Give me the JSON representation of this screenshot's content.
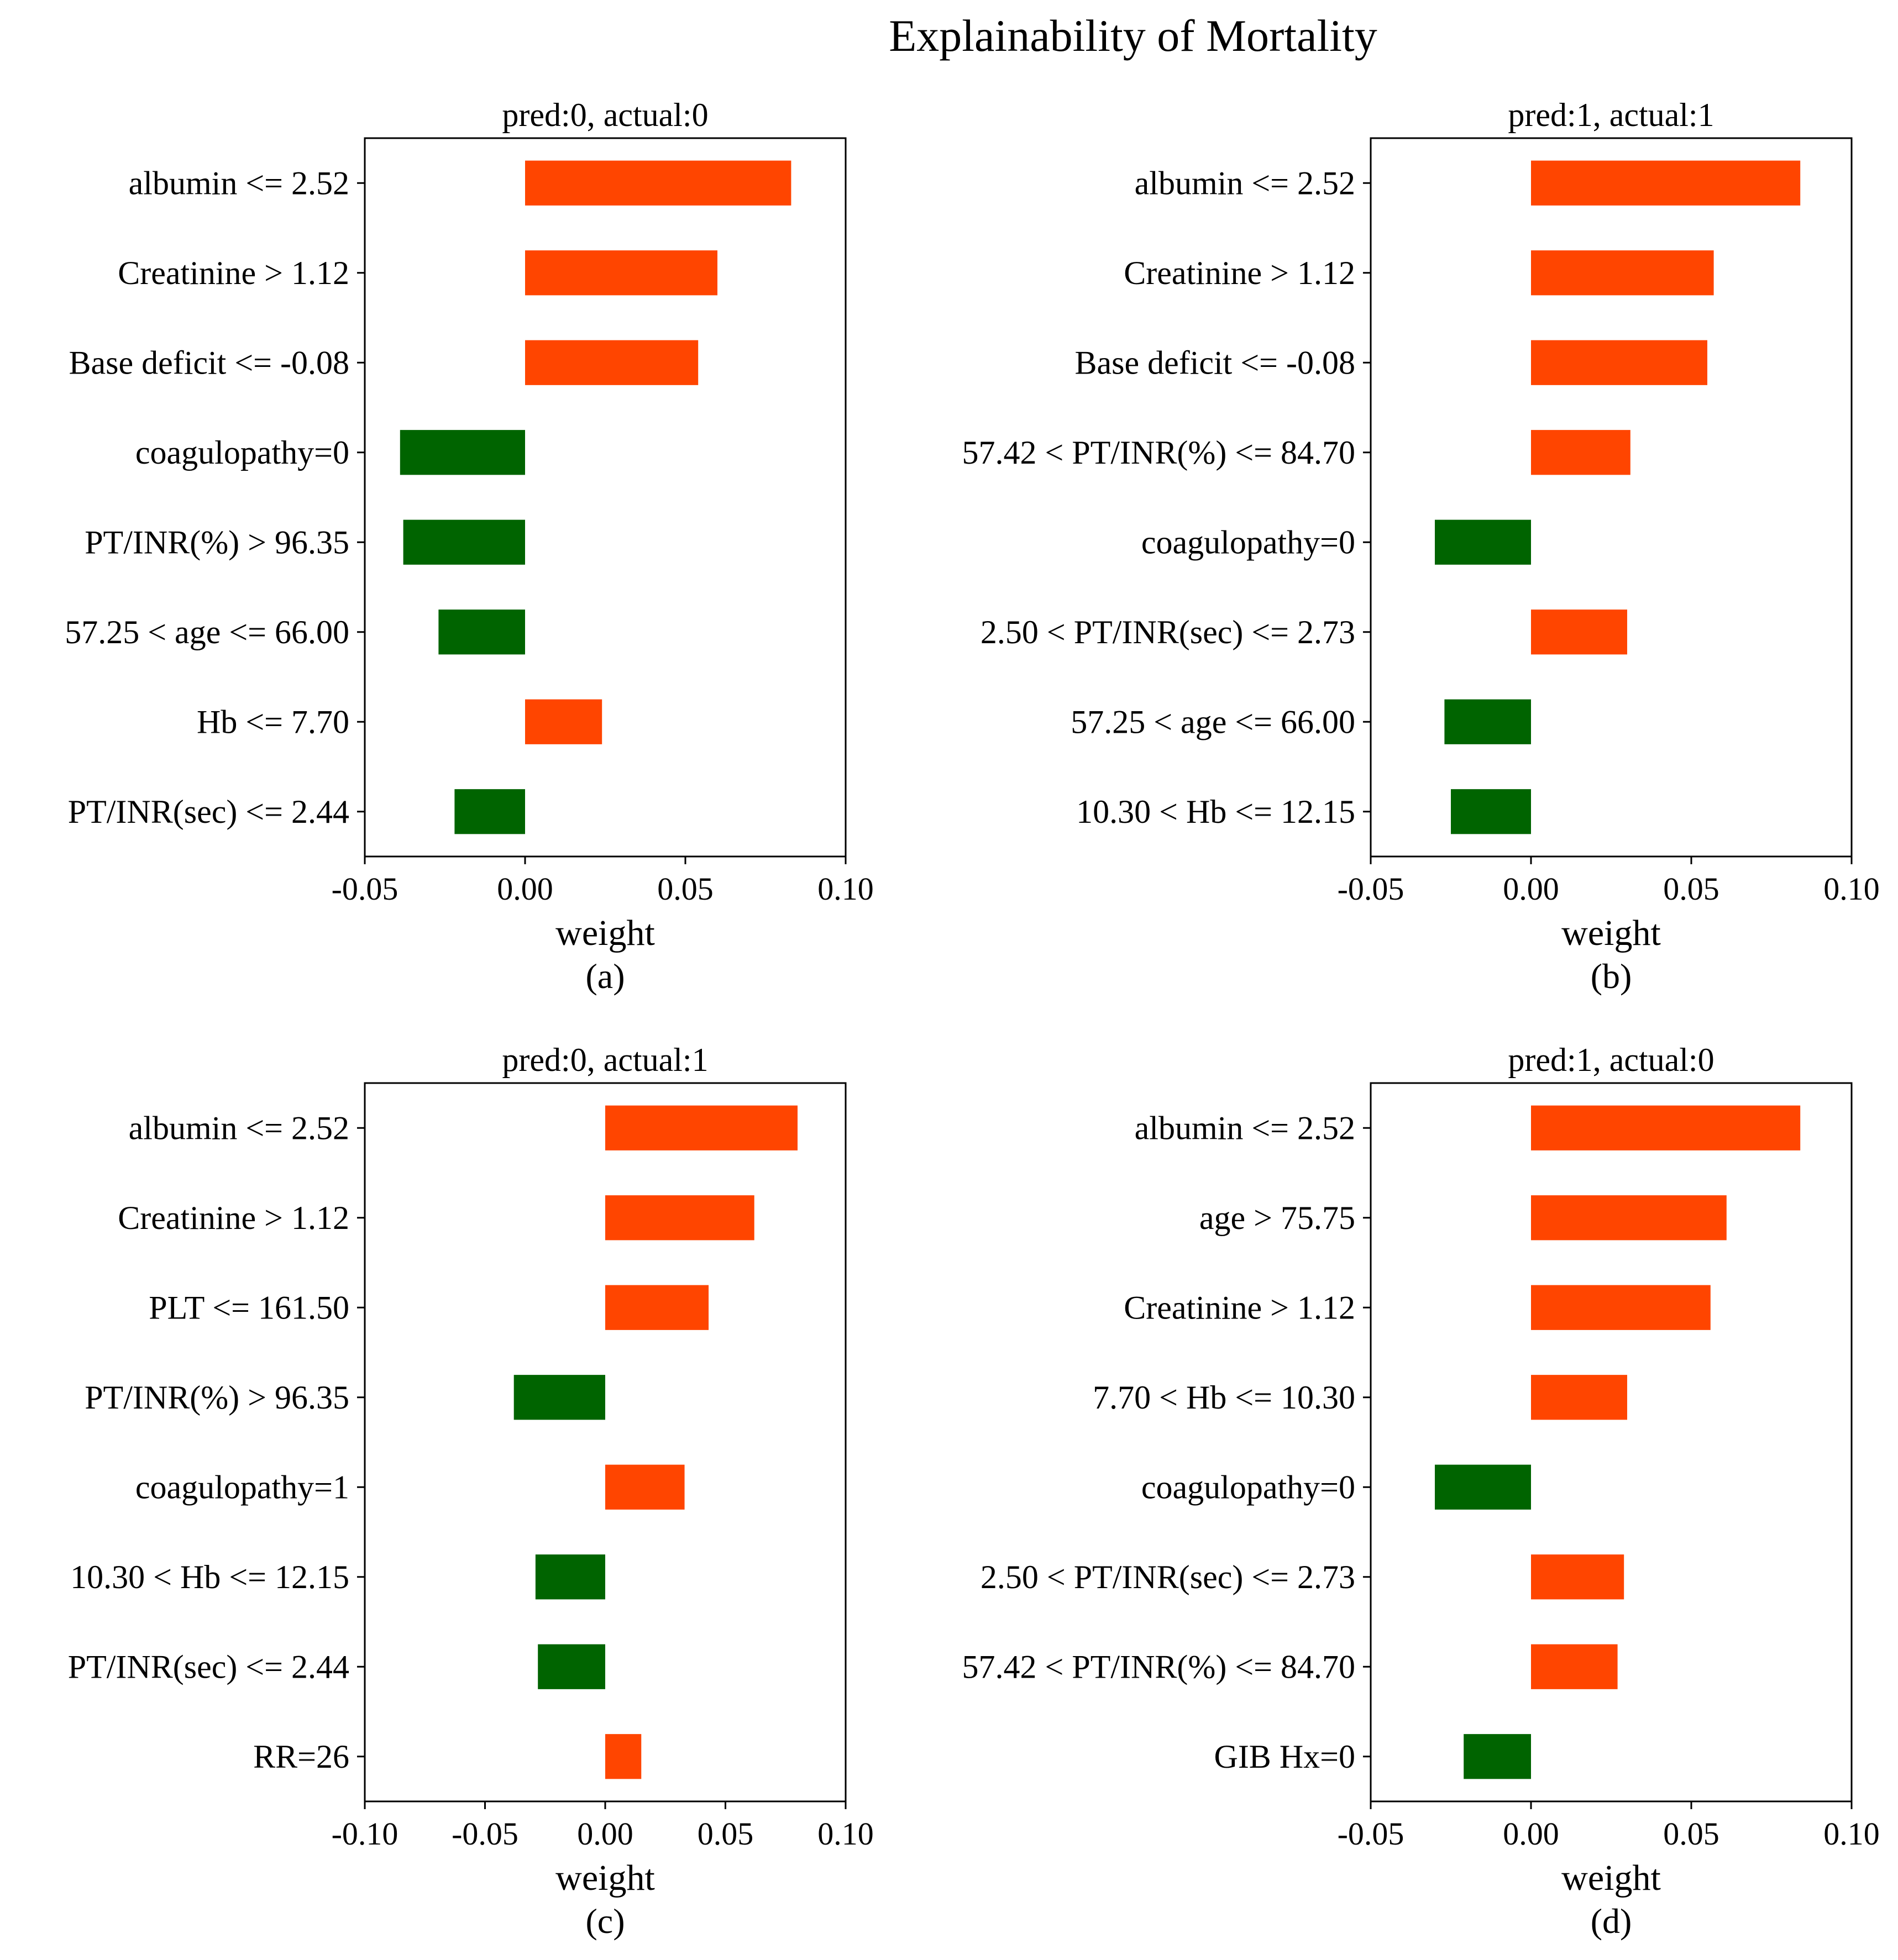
{
  "figure": {
    "title": "Explainability of Mortality"
  },
  "colors": {
    "positive": "#ff4500",
    "negative": "#006400",
    "frame": "#000000"
  },
  "chart_data": [
    {
      "type": "bar",
      "orientation": "horizontal",
      "subplot_label": "(a)",
      "title": "pred:0, actual:0",
      "xlabel": "weight",
      "xlim": [
        -0.05,
        0.1
      ],
      "xticks": [
        -0.05,
        0.0,
        0.05,
        0.1
      ],
      "xtick_labels": [
        "-0.05",
        "0.00",
        "0.05",
        "0.10"
      ],
      "categories": [
        "albumin <= 2.52",
        "Creatinine > 1.12",
        "Base deficit <= -0.08",
        "coagulopathy=0",
        "PT/INR(%) > 96.35",
        "57.25 < age <= 66.00",
        "Hb <= 7.70",
        "PT/INR(sec) <= 2.44"
      ],
      "values": [
        0.083,
        0.06,
        0.054,
        -0.039,
        -0.038,
        -0.027,
        0.024,
        -0.022
      ]
    },
    {
      "type": "bar",
      "orientation": "horizontal",
      "subplot_label": "(b)",
      "title": "pred:1, actual:1",
      "xlabel": "weight",
      "xlim": [
        -0.05,
        0.1
      ],
      "xticks": [
        -0.05,
        0.0,
        0.05,
        0.1
      ],
      "xtick_labels": [
        "-0.05",
        "0.00",
        "0.05",
        "0.10"
      ],
      "categories": [
        "albumin <= 2.52",
        "Creatinine > 1.12",
        "Base deficit <= -0.08",
        "57.42 < PT/INR(%) <= 84.70",
        "coagulopathy=0",
        "2.50 < PT/INR(sec) <= 2.73",
        "57.25 < age <= 66.00",
        "10.30 < Hb <= 12.15"
      ],
      "values": [
        0.084,
        0.057,
        0.055,
        0.031,
        -0.03,
        0.03,
        -0.027,
        -0.025
      ]
    },
    {
      "type": "bar",
      "orientation": "horizontal",
      "subplot_label": "(c)",
      "title": "pred:0, actual:1",
      "xlabel": "weight",
      "xlim": [
        -0.1,
        0.1
      ],
      "xticks": [
        -0.1,
        -0.05,
        0.0,
        0.05,
        0.1
      ],
      "xtick_labels": [
        "-0.10",
        "-0.05",
        "0.00",
        "0.05",
        "0.10"
      ],
      "categories": [
        "albumin <= 2.52",
        "Creatinine > 1.12",
        "PLT <= 161.50",
        "PT/INR(%) > 96.35",
        "coagulopathy=1",
        "10.30 < Hb <= 12.15",
        "PT/INR(sec) <= 2.44",
        "RR=26"
      ],
      "values": [
        0.08,
        0.062,
        0.043,
        -0.038,
        0.033,
        -0.029,
        -0.028,
        0.015
      ]
    },
    {
      "type": "bar",
      "orientation": "horizontal",
      "subplot_label": "(d)",
      "title": "pred:1, actual:0",
      "xlabel": "weight",
      "xlim": [
        -0.05,
        0.1
      ],
      "xticks": [
        -0.05,
        0.0,
        0.05,
        0.1
      ],
      "xtick_labels": [
        "-0.05",
        "0.00",
        "0.05",
        "0.10"
      ],
      "categories": [
        "albumin <= 2.52",
        "age > 75.75",
        "Creatinine > 1.12",
        "7.70 < Hb <= 10.30",
        "coagulopathy=0",
        "2.50 < PT/INR(sec) <= 2.73",
        "57.42 < PT/INR(%) <= 84.70",
        "GIB Hx=0"
      ],
      "values": [
        0.084,
        0.061,
        0.056,
        0.03,
        -0.03,
        0.029,
        0.027,
        -0.021
      ]
    }
  ]
}
